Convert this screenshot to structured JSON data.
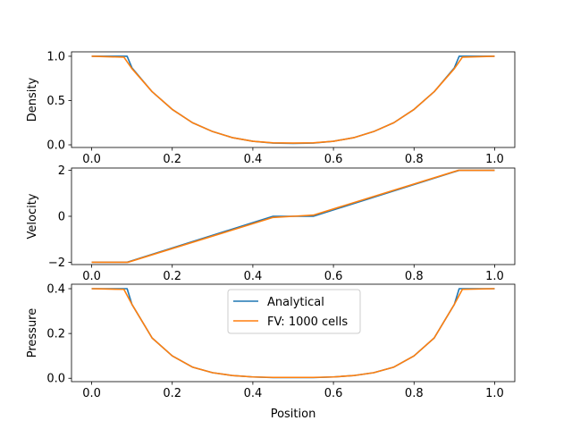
{
  "chart_data": {
    "type": "line",
    "xlabel": "Position",
    "legend": {
      "placement": "upper-center-bottom-panel",
      "entries": [
        {
          "name": "Analytical",
          "color": "#1f77b4"
        },
        {
          "name": "FV: 1000 cells",
          "color": "#ff7f0e"
        }
      ]
    },
    "panels": [
      {
        "ylabel": "Density",
        "xlim": [
          -0.05,
          1.05
        ],
        "ylim": [
          -0.03,
          1.05
        ],
        "xticks": [
          0.0,
          0.2,
          0.4,
          0.6,
          0.8,
          1.0
        ],
        "xtick_labels": [
          "0.0",
          "0.2",
          "0.4",
          "0.6",
          "0.8",
          "1.0"
        ],
        "yticks": [
          0.0,
          0.5,
          1.0
        ],
        "ytick_labels": [
          "0.0",
          "0.5",
          "1.0"
        ],
        "series": [
          {
            "name": "Analytical",
            "color": "#1f77b4",
            "x": [
              0.0,
              0.088,
              0.1,
              0.15,
              0.2,
              0.25,
              0.3,
              0.35,
              0.4,
              0.45,
              0.5,
              0.55,
              0.6,
              0.65,
              0.7,
              0.75,
              0.8,
              0.85,
              0.9,
              0.912,
              1.0
            ],
            "y": [
              1.0,
              1.0,
              0.87,
              0.6,
              0.4,
              0.25,
              0.15,
              0.08,
              0.04,
              0.02,
              0.016,
              0.02,
              0.04,
              0.08,
              0.15,
              0.25,
              0.4,
              0.6,
              0.87,
              1.0,
              1.0
            ]
          },
          {
            "name": "FV: 1000 cells",
            "color": "#ff7f0e",
            "x": [
              0.0,
              0.08,
              0.1,
              0.15,
              0.2,
              0.25,
              0.3,
              0.35,
              0.4,
              0.45,
              0.5,
              0.55,
              0.6,
              0.65,
              0.7,
              0.75,
              0.8,
              0.85,
              0.9,
              0.92,
              1.0
            ],
            "y": [
              1.0,
              0.99,
              0.86,
              0.6,
              0.4,
              0.25,
              0.15,
              0.08,
              0.04,
              0.022,
              0.02,
              0.022,
              0.04,
              0.08,
              0.15,
              0.25,
              0.4,
              0.6,
              0.86,
              0.99,
              1.0
            ]
          }
        ]
      },
      {
        "ylabel": "Velocity",
        "xlim": [
          -0.05,
          1.05
        ],
        "ylim": [
          -2.1,
          2.1
        ],
        "xticks": [
          0.0,
          0.2,
          0.4,
          0.6,
          0.8,
          1.0
        ],
        "xtick_labels": [
          "0.0",
          "0.2",
          "0.4",
          "0.6",
          "0.8",
          "1.0"
        ],
        "yticks": [
          -2,
          0,
          2
        ],
        "ytick_labels": [
          "−2",
          "0",
          "2"
        ],
        "series": [
          {
            "name": "Analytical",
            "color": "#1f77b4",
            "x": [
              0.0,
              0.088,
              0.45,
              0.55,
              0.912,
              1.0
            ],
            "y": [
              -2.0,
              -2.0,
              0.0,
              0.0,
              2.0,
              2.0
            ]
          },
          {
            "name": "FV: 1000 cells",
            "color": "#ff7f0e",
            "x": [
              0.0,
              0.09,
              0.45,
              0.5,
              0.55,
              0.91,
              1.0
            ],
            "y": [
              -2.0,
              -2.0,
              -0.05,
              0.0,
              0.05,
              2.0,
              2.0
            ]
          }
        ]
      },
      {
        "ylabel": "Pressure",
        "xlim": [
          -0.05,
          1.05
        ],
        "ylim": [
          -0.015,
          0.42
        ],
        "xticks": [
          0.0,
          0.2,
          0.4,
          0.6,
          0.8,
          1.0
        ],
        "xtick_labels": [
          "0.0",
          "0.2",
          "0.4",
          "0.6",
          "0.8",
          "1.0"
        ],
        "yticks": [
          0.0,
          0.2,
          0.4
        ],
        "ytick_labels": [
          "0.0",
          "0.2",
          "0.4"
        ],
        "series": [
          {
            "name": "Analytical",
            "color": "#1f77b4",
            "x": [
              0.0,
              0.088,
              0.1,
              0.15,
              0.2,
              0.25,
              0.3,
              0.35,
              0.4,
              0.45,
              0.5,
              0.55,
              0.6,
              0.65,
              0.7,
              0.75,
              0.8,
              0.85,
              0.9,
              0.912,
              1.0
            ],
            "y": [
              0.4,
              0.4,
              0.33,
              0.18,
              0.1,
              0.05,
              0.025,
              0.012,
              0.006,
              0.003,
              0.003,
              0.003,
              0.006,
              0.012,
              0.025,
              0.05,
              0.1,
              0.18,
              0.33,
              0.4,
              0.4
            ]
          },
          {
            "name": "FV: 1000 cells",
            "color": "#ff7f0e",
            "x": [
              0.0,
              0.08,
              0.1,
              0.15,
              0.2,
              0.25,
              0.3,
              0.35,
              0.4,
              0.45,
              0.5,
              0.55,
              0.6,
              0.65,
              0.7,
              0.75,
              0.8,
              0.85,
              0.9,
              0.92,
              1.0
            ],
            "y": [
              0.4,
              0.397,
              0.33,
              0.18,
              0.1,
              0.05,
              0.025,
              0.012,
              0.006,
              0.004,
              0.004,
              0.004,
              0.006,
              0.012,
              0.025,
              0.05,
              0.1,
              0.18,
              0.33,
              0.397,
              0.4
            ]
          }
        ]
      }
    ]
  }
}
